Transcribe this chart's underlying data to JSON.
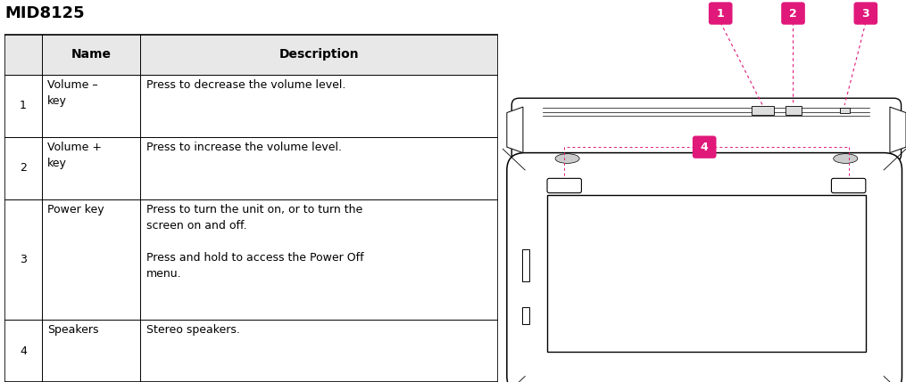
{
  "title": "MID8125",
  "title_fontsize": 13,
  "bg_color": "#ffffff",
  "table_header_bg": "#e8e8e8",
  "table_border_color": "#000000",
  "accent_color": "#e0187a",
  "text_color": "#000000",
  "header_cols": [
    "Name",
    "Description"
  ],
  "rows": [
    {
      "num": "1",
      "name": "Volume –\nkey",
      "desc": "Press to decrease the volume level."
    },
    {
      "num": "2",
      "name": "Volume +\nkey",
      "desc": "Press to increase the volume level."
    },
    {
      "num": "3",
      "name": "Power key",
      "desc": "Press to turn the unit on, or to turn the\nscreen on and off.\n\nPress and hold to access the Power Off\nmenu."
    },
    {
      "num": "4",
      "name": "Speakers",
      "desc": "Stereo speakers."
    }
  ],
  "figsize": [
    10.15,
    4.29
  ],
  "dpi": 100
}
